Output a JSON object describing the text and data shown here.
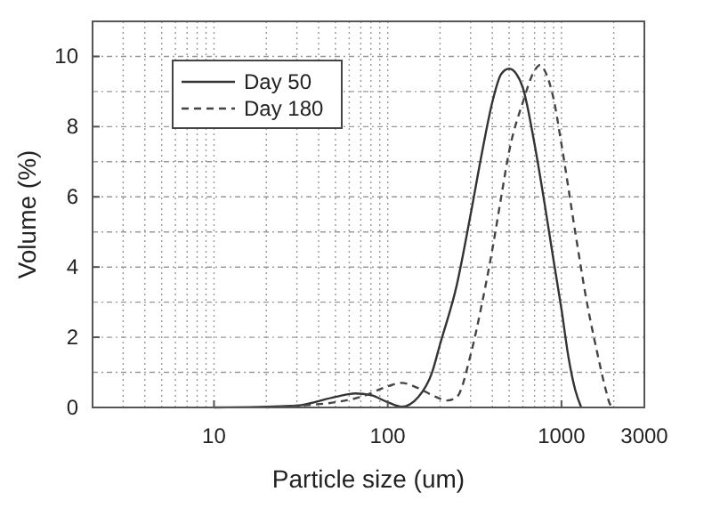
{
  "chart_data": {
    "type": "line",
    "xlabel": "Particle size (um)",
    "ylabel": "Volume (%)",
    "xlim": [
      2,
      3000
    ],
    "xticks": [
      10,
      100,
      1000,
      3000
    ],
    "ylim": [
      0,
      11
    ],
    "yticks": [
      0,
      2,
      4,
      6,
      8,
      10
    ],
    "log": "x",
    "grid": true,
    "legend": "top left",
    "series": [
      {
        "name": "Day 50",
        "color": "#333333",
        "line_style": "solid",
        "x": [
          10,
          20,
          30,
          50,
          65,
          80,
          100,
          120,
          150,
          180,
          200,
          250,
          300,
          350,
          400,
          450,
          500,
          550,
          600,
          700,
          800,
          900,
          1000,
          1100,
          1200,
          1300
        ],
        "values": [
          0,
          0.02,
          0.05,
          0.3,
          0.4,
          0.35,
          0.15,
          0.02,
          0.3,
          1.0,
          1.8,
          3.5,
          5.5,
          7.3,
          8.7,
          9.5,
          9.65,
          9.5,
          9.1,
          7.5,
          5.8,
          4.2,
          2.8,
          1.4,
          0.5,
          0
        ]
      },
      {
        "name": "Day 180",
        "color": "#444444",
        "line_style": "dashed",
        "x": [
          20,
          30,
          50,
          70,
          100,
          120,
          150,
          180,
          220,
          250,
          300,
          350,
          400,
          450,
          500,
          600,
          700,
          750,
          800,
          900,
          1000,
          1200,
          1400,
          1600,
          1800,
          1900,
          2000
        ],
        "values": [
          0,
          0.05,
          0.15,
          0.3,
          0.6,
          0.7,
          0.55,
          0.35,
          0.2,
          0.3,
          1.5,
          3.0,
          4.5,
          6.0,
          7.3,
          8.7,
          9.6,
          9.75,
          9.6,
          8.8,
          7.5,
          5.0,
          3.0,
          1.6,
          0.5,
          0.1,
          0
        ]
      }
    ]
  }
}
